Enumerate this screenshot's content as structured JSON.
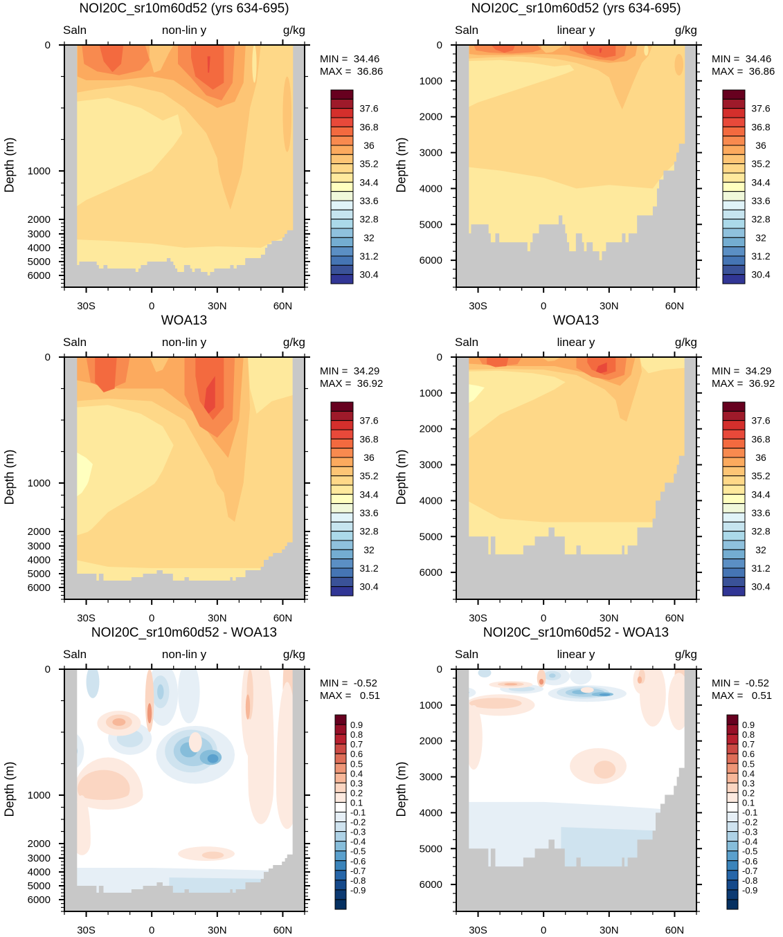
{
  "panels": [
    {
      "title": "NOI20C_sr10m60d52 (yrs 634-695)",
      "variable": "Saln",
      "axis_mode": "non-lin y",
      "units": "g/kg",
      "min_label": "MIN =  34.46",
      "max_label": "MAX =  36.86",
      "ylabel": "Depth (m)",
      "field": "model",
      "scale": "abs"
    },
    {
      "title": "NOI20C_sr10m60d52 (yrs 634-695)",
      "variable": "Saln",
      "axis_mode": "linear y",
      "units": "g/kg",
      "min_label": "MIN =  34.46",
      "max_label": "MAX =  36.86",
      "ylabel": "Depth (m)",
      "field": "model",
      "scale": "abs"
    },
    {
      "title": "WOA13",
      "variable": "Saln",
      "axis_mode": "non-lin y",
      "units": "g/kg",
      "min_label": "MIN =  34.29",
      "max_label": "MAX =  36.92",
      "ylabel": "Depth (m)",
      "field": "woa",
      "scale": "abs"
    },
    {
      "title": "WOA13",
      "variable": "Saln",
      "axis_mode": "linear y",
      "units": "g/kg",
      "min_label": "MIN =  34.29",
      "max_label": "MAX =  36.92",
      "ylabel": "Depth (m)",
      "field": "woa",
      "scale": "abs"
    },
    {
      "title": "NOI20C_sr10m60d52 - WOA13",
      "variable": "Saln",
      "axis_mode": "non-lin y",
      "units": "g/kg",
      "min_label": "MIN =  -0.52",
      "max_label": "MAX =   0.51",
      "ylabel": "Depth (m)",
      "field": "diff",
      "scale": "diff"
    },
    {
      "title": "NOI20C_sr10m60d52 - WOA13",
      "variable": "Saln",
      "axis_mode": "linear y",
      "units": "g/kg",
      "min_label": "MIN =  -0.52",
      "max_label": "MAX =   0.51",
      "ylabel": "Depth (m)",
      "field": "diff",
      "scale": "diff"
    }
  ],
  "x_ticks": [
    {
      "value": -30,
      "label": "30S"
    },
    {
      "value": 0,
      "label": "0"
    },
    {
      "value": 30,
      "label": "30N"
    },
    {
      "value": 60,
      "label": "60N"
    }
  ],
  "y_ticks": [
    {
      "value": 0,
      "label": "0"
    },
    {
      "value": 1000,
      "label": "1000"
    },
    {
      "value": 2000,
      "label": "2000"
    },
    {
      "value": 3000,
      "label": "3000"
    },
    {
      "value": 4000,
      "label": "4000"
    },
    {
      "value": 5000,
      "label": "5000"
    },
    {
      "value": 6000,
      "label": "6000"
    }
  ],
  "colorbars": {
    "abs": {
      "colors": [
        "#67001f",
        "#9e1a2a",
        "#d42f2c",
        "#e8493a",
        "#f36a3f",
        "#f88a4f",
        "#fcaa5e",
        "#fdc575",
        "#fed888",
        "#fee99d",
        "#ffffbf",
        "#f0f8da",
        "#e0f3f8",
        "#c6e4ef",
        "#abd9e9",
        "#8fc1dd",
        "#74add1",
        "#5b8fc4",
        "#4575b4",
        "#3a5298",
        "#313695"
      ],
      "labels": [
        "37.6",
        "36.8",
        "36",
        "35.2",
        "34.4",
        "33.6",
        "32.8",
        "32",
        "31.2",
        "30.4"
      ],
      "label_every": 2
    },
    "diff": {
      "colors": [
        "#67001f",
        "#960f27",
        "#b8202f",
        "#cc4a44",
        "#de6e58",
        "#ee9677",
        "#f7b799",
        "#fbd6c2",
        "#fdeae0",
        "#ffffff",
        "#e6eff6",
        "#cfe3ef",
        "#aed2e6",
        "#86bdda",
        "#5aa0cd",
        "#3a84bb",
        "#2666a9",
        "#15498a",
        "#0c3a72",
        "#053061"
      ],
      "labels": [
        "0.9",
        "0.8",
        "0.7",
        "0.6",
        "0.5",
        "0.4",
        "0.3",
        "0.2",
        "0.1",
        "-0.1",
        "-0.2",
        "-0.3",
        "-0.4",
        "-0.5",
        "-0.6",
        "-0.7",
        "-0.8",
        "-0.9"
      ],
      "label_every": 1
    }
  },
  "chart_data": {
    "type": "heatmap",
    "description_type": "filled contour depth-latitude sections",
    "xlabel": "",
    "ylabel": "Depth (m)",
    "xlim": [
      -40,
      70
    ],
    "ylim": [
      6750,
      0
    ],
    "land_color": "#c8c8c8",
    "bathymetry_model": [
      [
        -34.2,
        5250
      ],
      [
        -33.2,
        5000
      ],
      [
        -25.2,
        5250
      ],
      [
        -24.2,
        5500
      ],
      [
        -22.1,
        5250
      ],
      [
        -20.3,
        5500
      ],
      [
        -7.4,
        5750
      ],
      [
        -6.1,
        5500
      ],
      [
        -5,
        5250
      ],
      [
        -2.1,
        5000
      ],
      [
        6.9,
        4750
      ],
      [
        8.6,
        5000
      ],
      [
        9.9,
        5250
      ],
      [
        10.7,
        5500
      ],
      [
        11.7,
        5750
      ],
      [
        14.8,
        5250
      ],
      [
        17.6,
        5500
      ],
      [
        18.5,
        5750
      ],
      [
        19.7,
        5500
      ],
      [
        22.5,
        5750
      ],
      [
        25.5,
        6000
      ],
      [
        26.7,
        5750
      ],
      [
        28.6,
        5500
      ],
      [
        35.9,
        5250
      ],
      [
        37.5,
        5500
      ],
      [
        38.9,
        5250
      ],
      [
        42.8,
        4750
      ],
      [
        50,
        4500
      ],
      [
        51.9,
        4000
      ],
      [
        52.9,
        3750
      ],
      [
        54.9,
        3500
      ],
      [
        59.8,
        3250
      ],
      [
        60.8,
        3000
      ],
      [
        62,
        2750
      ],
      [
        64.7,
        0
      ]
    ],
    "bathymetry_woa": [
      [
        -34.2,
        5000
      ],
      [
        -25.3,
        5500
      ],
      [
        -24.2,
        5000
      ],
      [
        -22.1,
        5500
      ],
      [
        -9.3,
        5250
      ],
      [
        -4,
        5000
      ],
      [
        2.3,
        4750
      ],
      [
        5,
        5000
      ],
      [
        9.7,
        5500
      ],
      [
        15,
        5250
      ],
      [
        17,
        5500
      ],
      [
        35.9,
        5250
      ],
      [
        37,
        5500
      ],
      [
        38.5,
        5250
      ],
      [
        42.9,
        4750
      ],
      [
        49.9,
        4500
      ],
      [
        51.3,
        4000
      ],
      [
        53.5,
        3750
      ],
      [
        55.5,
        3500
      ],
      [
        59.6,
        3250
      ],
      [
        61,
        3000
      ],
      [
        62,
        2750
      ],
      [
        64.5,
        0
      ]
    ]
  }
}
